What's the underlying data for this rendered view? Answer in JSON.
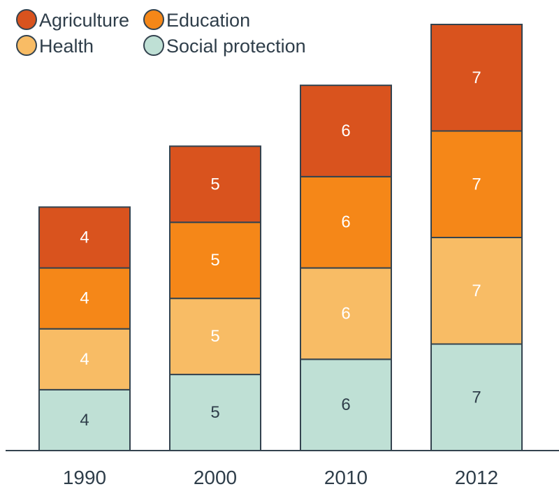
{
  "chart_data": {
    "type": "bar",
    "stacked": true,
    "categories": [
      "1990",
      "2000",
      "2010",
      "2012"
    ],
    "series": [
      {
        "name": "Social protection",
        "values": [
          4,
          5,
          6,
          7
        ],
        "color": "#bfe0d5",
        "label_color": "#2f3e4a"
      },
      {
        "name": "Health",
        "values": [
          4,
          5,
          6,
          7
        ],
        "color": "#f8bc65",
        "label_color": "#ffffff"
      },
      {
        "name": "Education",
        "values": [
          4,
          5,
          6,
          7
        ],
        "color": "#f58718",
        "label_color": "#ffffff"
      },
      {
        "name": "Agriculture",
        "values": [
          4,
          5,
          6,
          7
        ],
        "color": "#d9531e",
        "label_color": "#ffffff"
      }
    ],
    "legend": {
      "placement": "top-left",
      "order": [
        "Agriculture",
        "Education",
        "Health",
        "Social protection"
      ]
    },
    "title": "",
    "xlabel": "",
    "ylabel": "",
    "ylim": [
      0,
      28
    ],
    "grid": false,
    "outline_color": "#34434f"
  }
}
